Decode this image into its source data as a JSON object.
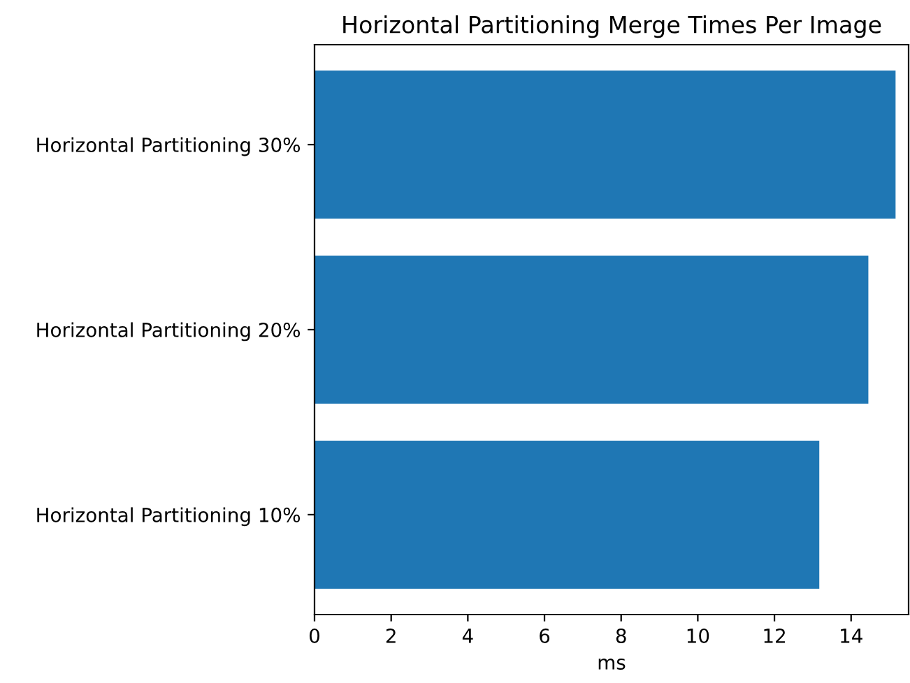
{
  "chart_data": {
    "type": "bar",
    "orientation": "horizontal",
    "title": "Horizontal Partitioning Merge Times Per Image",
    "xlabel": "ms",
    "categories": [
      "Horizontal Partitioning 30%",
      "Horizontal Partitioning 20%",
      "Horizontal Partitioning 10%"
    ],
    "values": [
      15.16,
      14.45,
      13.17
    ],
    "color": "#1f77b4",
    "xlim": [
      0,
      15.5
    ],
    "xticks": [
      0,
      2,
      4,
      6,
      8,
      10,
      12,
      14
    ],
    "grid": false
  }
}
